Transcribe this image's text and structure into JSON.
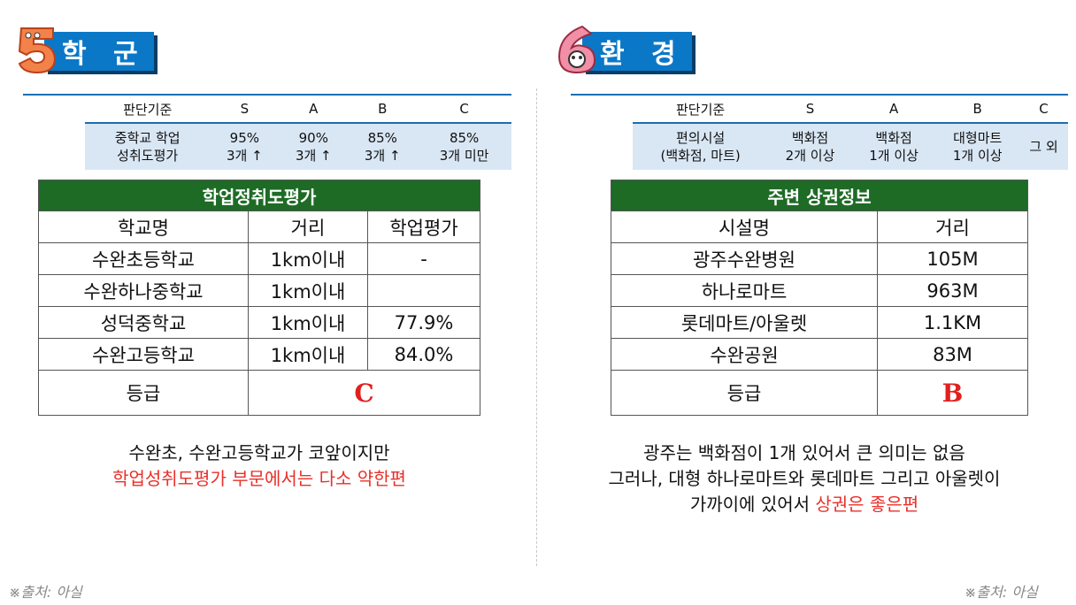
{
  "left": {
    "title": "학 군",
    "criteria": {
      "lead": "학군",
      "header": [
        "판단기준",
        "S",
        "A",
        "B",
        "C"
      ],
      "row": [
        [
          "중학교 학업",
          "성취도평가"
        ],
        [
          "95%",
          "3개 ↑"
        ],
        [
          "90%",
          "3개 ↑"
        ],
        [
          "85%",
          "3개 ↑"
        ],
        [
          "85%",
          "3개 미만"
        ]
      ]
    },
    "table": {
      "title": "학업정취도평가",
      "headers": [
        "학교명",
        "거리",
        "학업평가"
      ],
      "rows": [
        [
          "수완초등학교",
          "1km이내",
          "-"
        ],
        [
          "수완하나중학교",
          "1km이내",
          ""
        ],
        [
          "성덕중학교",
          "1km이내",
          "77.9%"
        ],
        [
          "수완고등학교",
          "1km이내",
          "84.0%"
        ]
      ],
      "grade_label": "등급",
      "grade": "C"
    },
    "caption": {
      "line1": "수완초, 수완고등학교가 코앞이지만",
      "line2": "학업성취도평가 부문에서는 다소 약한편"
    },
    "source": "※출처: 아실"
  },
  "right": {
    "title": "환 경",
    "criteria": {
      "lead": "환경",
      "header": [
        "판단기준",
        "S",
        "A",
        "B",
        "C"
      ],
      "row": [
        [
          "편의시설",
          "(백화점, 마트)"
        ],
        [
          "백화점",
          "2개 이상"
        ],
        [
          "백화점",
          "1개 이상"
        ],
        [
          "대형마트",
          "1개 이상"
        ],
        [
          "그 외",
          ""
        ]
      ]
    },
    "table": {
      "title": "주변 상권정보",
      "headers": [
        "시설명",
        "거리"
      ],
      "rows": [
        [
          "광주수완병원",
          "105M"
        ],
        [
          "하나로마트",
          "963M"
        ],
        [
          "롯데마트/아울렛",
          "1.1KM"
        ],
        [
          "수완공원",
          "83M"
        ]
      ],
      "grade_label": "등급",
      "grade": "B"
    },
    "caption": {
      "line1": "광주는 백화점이 1개 있어서 큰 의미는 없음",
      "line2": "그러나, 대형 하나로마트와 롯데마트 그리고 아울렛이",
      "line3_plain": "가까이에 있어서 ",
      "line3_red": "상권은 좋은편"
    },
    "source": "※출처: 아실"
  },
  "icons": {
    "left_number": "number-5-icon",
    "right_number": "number-6-icon"
  },
  "colors": {
    "accent_blue": "#0b78c7",
    "table_green": "#1e6b26",
    "highlight_red": "#e8302a"
  }
}
